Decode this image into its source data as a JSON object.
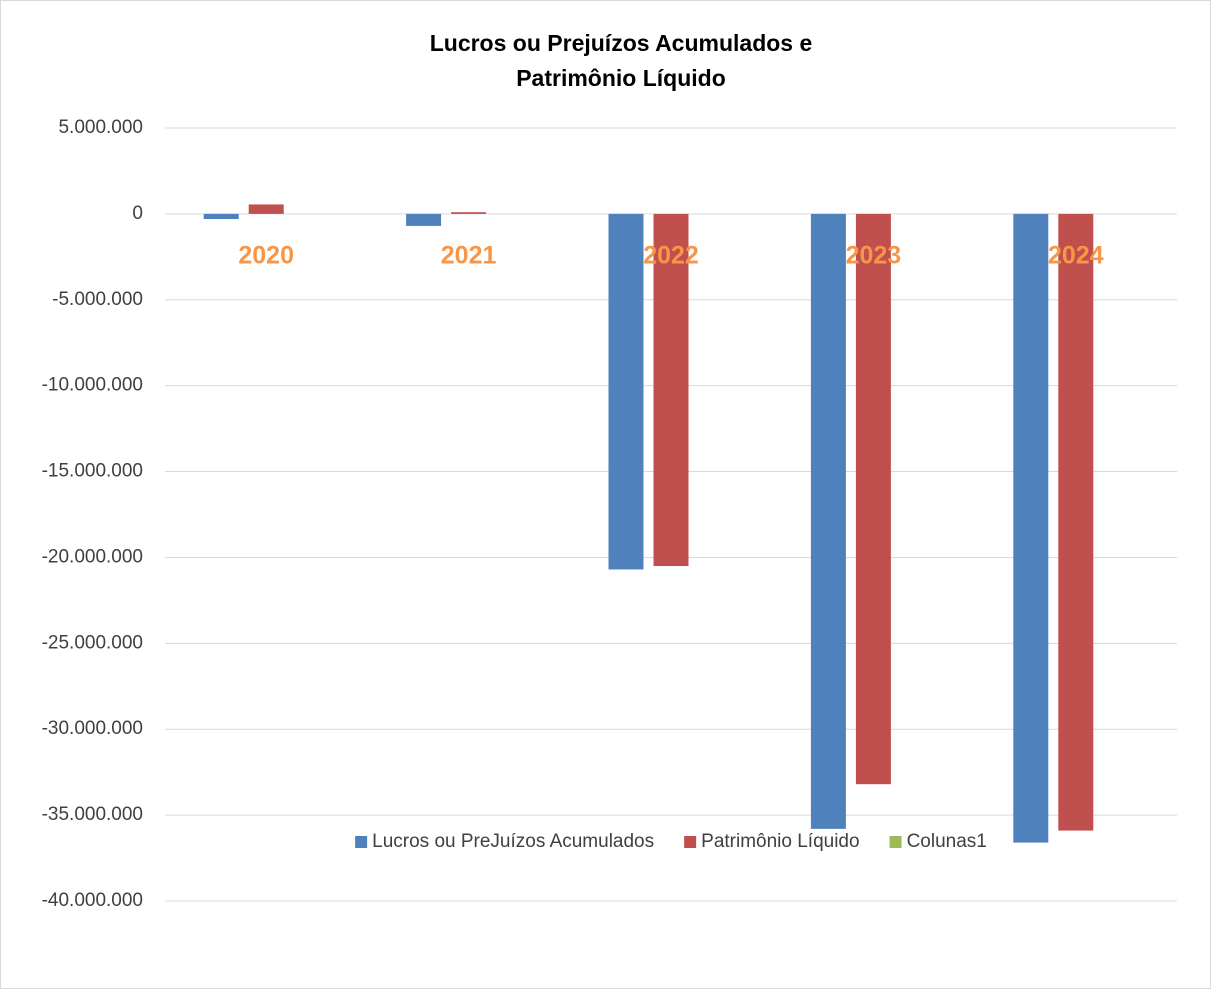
{
  "chart_data": {
    "type": "bar",
    "title": [
      "Lucros ou Prejuízos Acumulados e",
      "Patrimônio Líquido"
    ],
    "categories": [
      "2020",
      "2021",
      "2022",
      "2023",
      "2024"
    ],
    "series": [
      {
        "name": "Lucros ou PreJuízos Acumulados",
        "color": "#4f81bd",
        "values": [
          -300000,
          -700000,
          -20700000,
          -35800000,
          -36600000
        ]
      },
      {
        "name": "Patrimônio Líquido",
        "color": "#c0504d",
        "values": [
          550000,
          100000,
          -20500000,
          -33200000,
          -35900000
        ]
      },
      {
        "name": "Colunas1",
        "color": "#9bbb59",
        "values": [
          null,
          null,
          null,
          null,
          null
        ]
      }
    ],
    "ylim": [
      -40000000,
      5000000
    ],
    "yticks": [
      {
        "value": 5000000,
        "label": "5.000.000"
      },
      0,
      {
        "value": -5000000,
        "label": "-5.000.000"
      },
      {
        "value": -10000000,
        "label": "-10.000.000"
      },
      {
        "value": -15000000,
        "label": "-15.000.000"
      },
      {
        "value": -20000000,
        "label": "-20.000.000"
      },
      {
        "value": -25000000,
        "label": "-25.000.000"
      },
      {
        "value": -30000000,
        "label": "-30.000.000"
      },
      {
        "value": -35000000,
        "label": "-35.000.000"
      },
      {
        "value": -40000000,
        "label": "-40.000.000"
      }
    ],
    "grid": true,
    "legend": "bottom"
  }
}
